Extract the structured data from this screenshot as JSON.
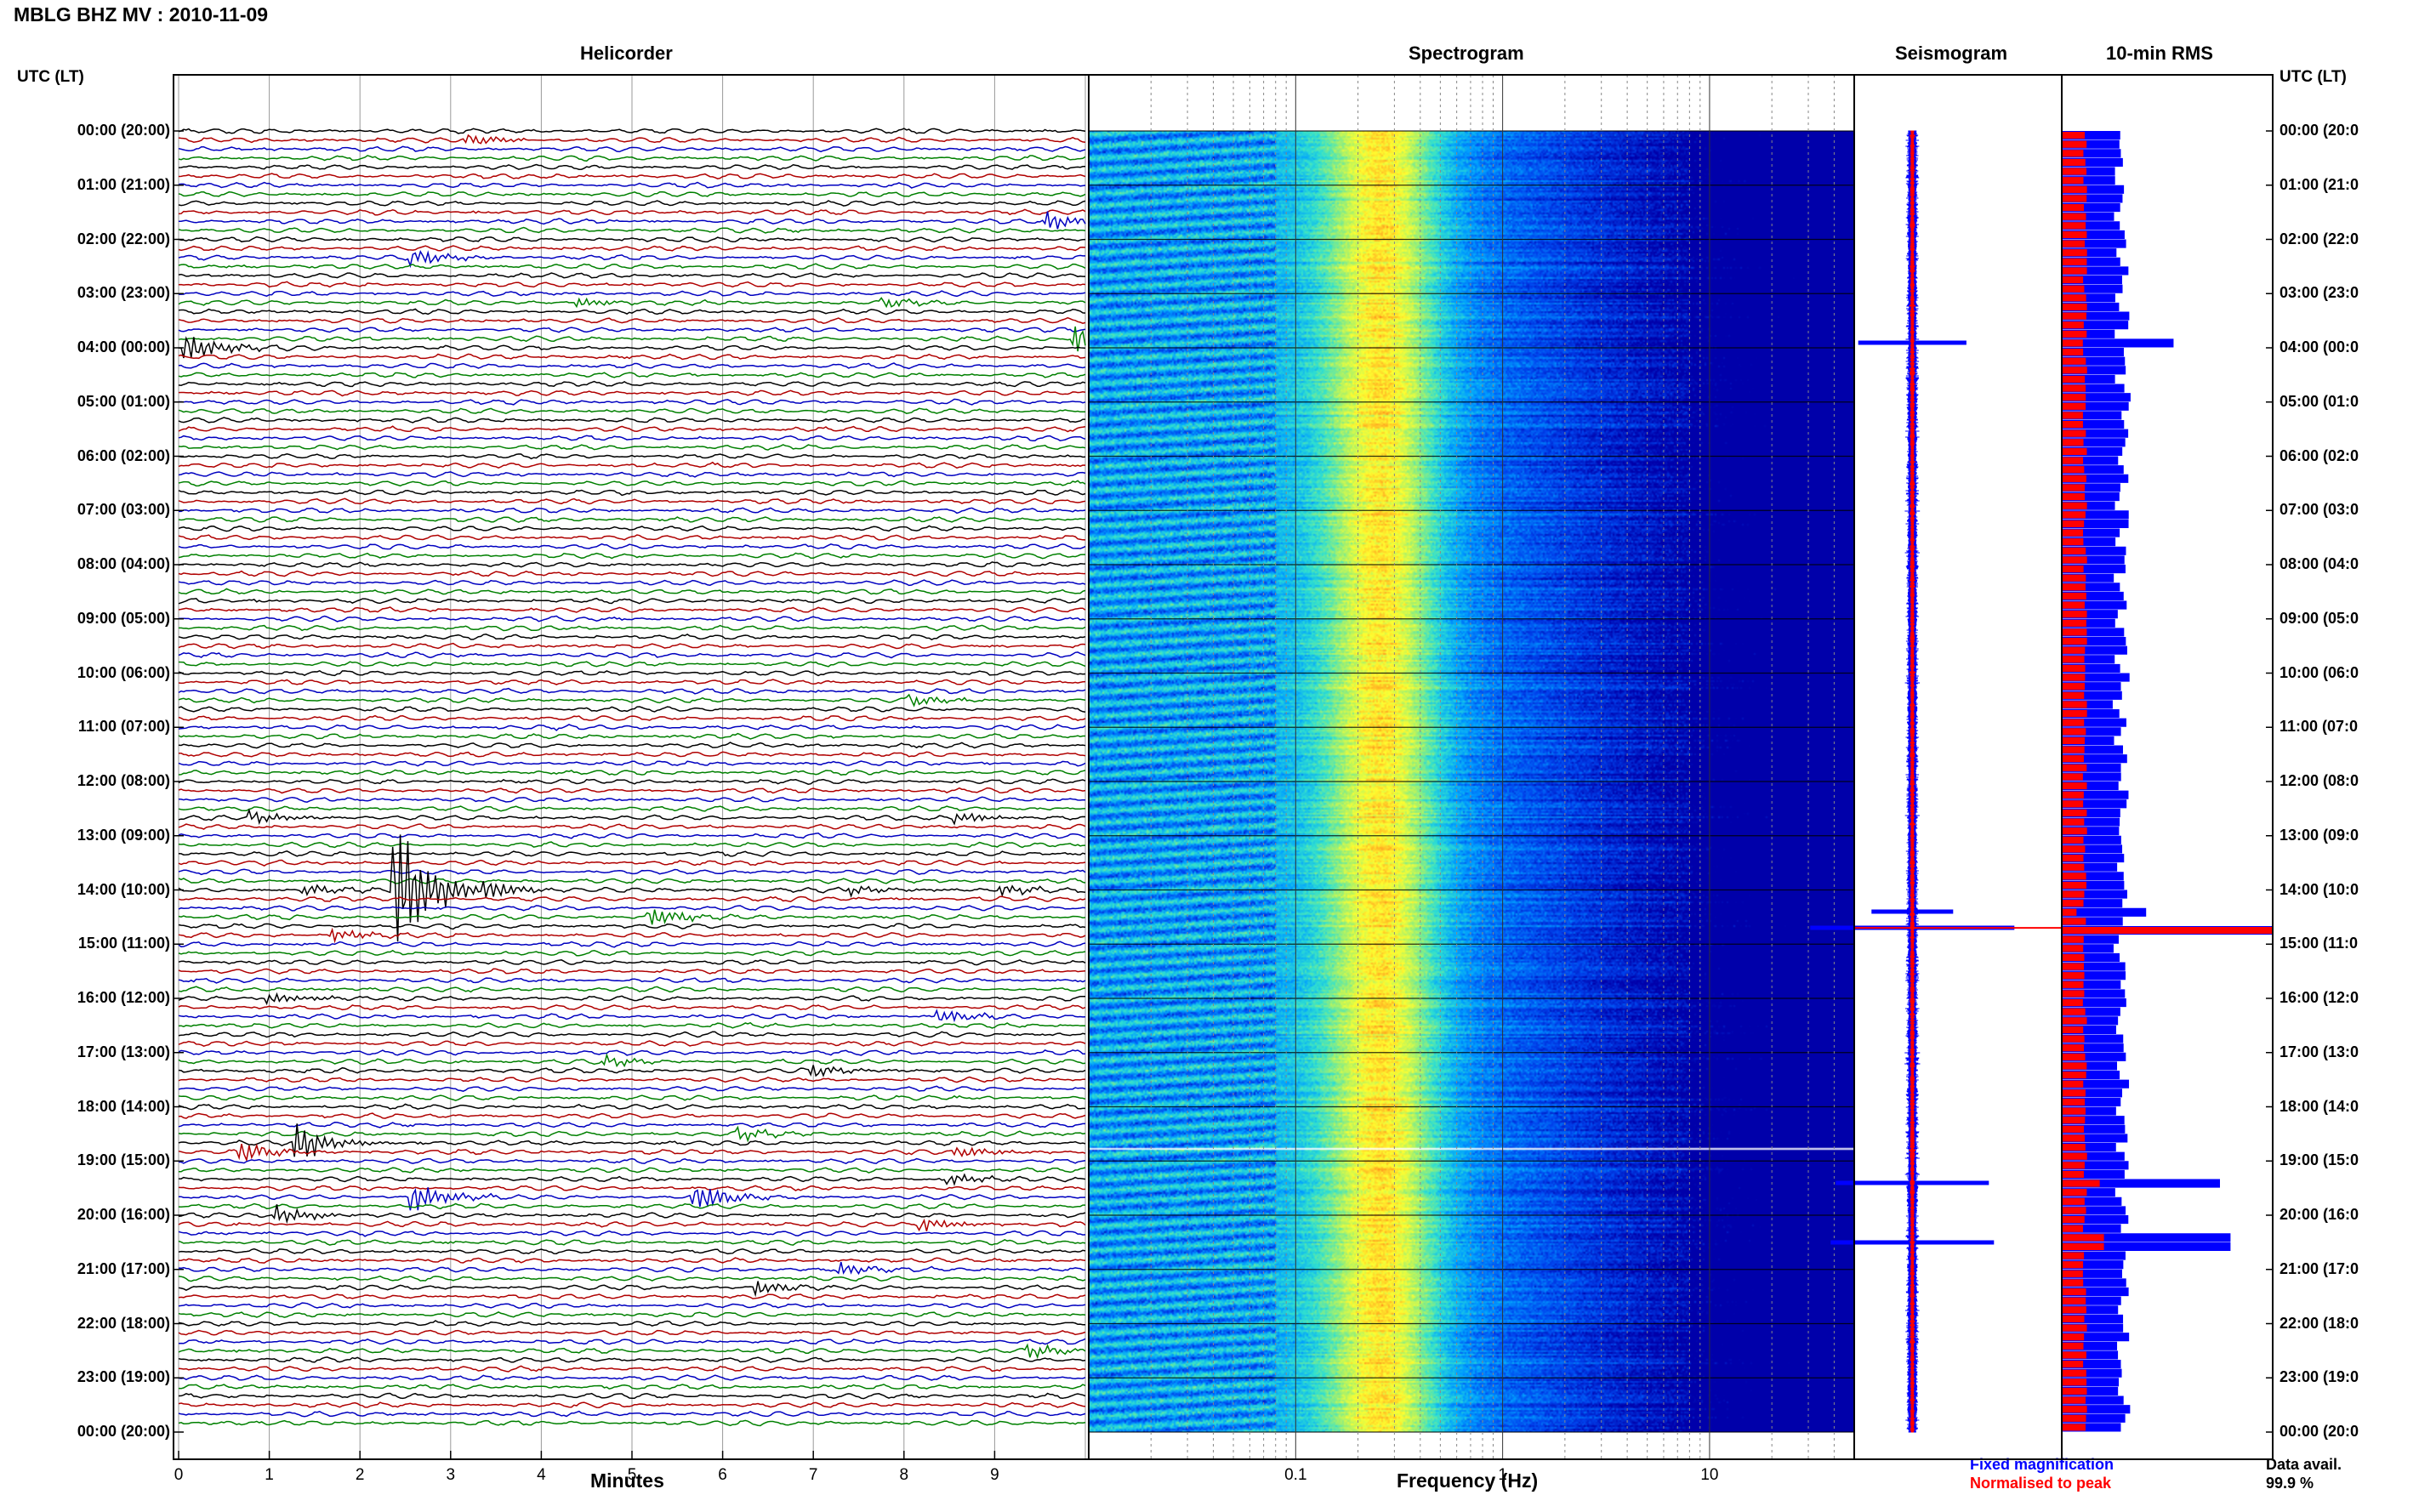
{
  "header": {
    "station_title": "MBLG BHZ MV : 2010-11-09",
    "left_axis_label": "UTC (LT)",
    "right_axis_label": "UTC (LT)"
  },
  "panels": {
    "helicorder": "Helicorder",
    "spectrogram": "Spectrogram",
    "seismogram": "Seismogram",
    "rms": "10-min RMS"
  },
  "time_labels_left": [
    "00:00 (20:00)",
    "01:00 (21:00)",
    "02:00 (22:00)",
    "03:00 (23:00)",
    "04:00 (00:00)",
    "05:00 (01:00)",
    "06:00 (02:00)",
    "07:00 (03:00)",
    "08:00 (04:00)",
    "09:00 (05:00)",
    "10:00 (06:00)",
    "11:00 (07:00)",
    "12:00 (08:00)",
    "13:00 (09:00)",
    "14:00 (10:00)",
    "15:00 (11:00)",
    "16:00 (12:00)",
    "17:00 (13:00)",
    "18:00 (14:00)",
    "19:00 (15:00)",
    "20:00 (16:00)",
    "21:00 (17:00)",
    "22:00 (18:00)",
    "23:00 (19:00)",
    "00:00 (20:00)"
  ],
  "time_labels_right": [
    "00:00 (20:0",
    "01:00 (21:0",
    "02:00 (22:0",
    "03:00 (23:0",
    "04:00 (00:0",
    "05:00 (01:0",
    "06:00 (02:0",
    "07:00 (03:0",
    "08:00 (04:0",
    "09:00 (05:0",
    "10:00 (06:0",
    "11:00 (07:0",
    "12:00 (08:0",
    "13:00 (09:0",
    "14:00 (10:0",
    "15:00 (11:0",
    "16:00 (12:0",
    "17:00 (13:0",
    "18:00 (14:0",
    "19:00 (15:0",
    "20:00 (16:0",
    "21:00 (17:0",
    "22:00 (18:0",
    "23:00 (19:0",
    "00:00 (20:0"
  ],
  "x_axes": {
    "helicorder_ticks": [
      "0",
      "1",
      "2",
      "3",
      "4",
      "5",
      "6",
      "7",
      "8",
      "9"
    ],
    "helicorder_label": "Minutes",
    "spectrogram_ticks": [
      "0.1",
      "1",
      "10"
    ],
    "spectrogram_label": "Frequency (Hz)"
  },
  "legend": {
    "fixed": "Fixed magnification",
    "normalised": "Normalised to peak",
    "fixed_color": "#0000ff",
    "normalised_color": "#ff0000"
  },
  "data_avail": {
    "label": "Data avail.",
    "value": "99.9 %"
  },
  "chart_data": {
    "type": "heatmap",
    "description_note": "",
    "helicorder": {
      "minutes_per_line": 10,
      "lines": 144,
      "trace_colors": [
        "#000000",
        "#b00000",
        "#0000c0",
        "#008000"
      ],
      "events": [
        {
          "line": 1,
          "minute": 3.2,
          "amp": 1.2
        },
        {
          "line": 10,
          "minute": 9.6,
          "amp": 1.8
        },
        {
          "line": 14,
          "minute": 2.6,
          "amp": 1.6
        },
        {
          "line": 19,
          "minute": 4.4,
          "amp": 1.0
        },
        {
          "line": 19,
          "minute": 7.8,
          "amp": 1.0
        },
        {
          "line": 23,
          "minute": 9.9,
          "amp": 3.0
        },
        {
          "line": 24,
          "minute": 0.1,
          "amp": 3.0
        },
        {
          "line": 63,
          "minute": 8.1,
          "amp": 1.2
        },
        {
          "line": 76,
          "minute": 0.8,
          "amp": 1.5
        },
        {
          "line": 76,
          "minute": 8.6,
          "amp": 1.2
        },
        {
          "line": 84,
          "minute": 2.4,
          "amp": 14
        },
        {
          "line": 84,
          "minute": 1.4,
          "amp": 1.3
        },
        {
          "line": 84,
          "minute": 3.4,
          "amp": 1.3
        },
        {
          "line": 84,
          "minute": 7.4,
          "amp": 1.2
        },
        {
          "line": 84,
          "minute": 9.1,
          "amp": 1.2
        },
        {
          "line": 87,
          "minute": 5.2,
          "amp": 2.0
        },
        {
          "line": 89,
          "minute": 1.7,
          "amp": 1.4
        },
        {
          "line": 96,
          "minute": 1.0,
          "amp": 1.3
        },
        {
          "line": 98,
          "minute": 8.4,
          "amp": 1.4
        },
        {
          "line": 103,
          "minute": 4.7,
          "amp": 1.3
        },
        {
          "line": 104,
          "minute": 7.0,
          "amp": 1.2
        },
        {
          "line": 111,
          "minute": 6.2,
          "amp": 1.3
        },
        {
          "line": 112,
          "minute": 1.3,
          "amp": 4.0
        },
        {
          "line": 113,
          "minute": 0.7,
          "amp": 2.2
        },
        {
          "line": 113,
          "minute": 8.6,
          "amp": 1.3
        },
        {
          "line": 116,
          "minute": 8.5,
          "amp": 1.2
        },
        {
          "line": 118,
          "minute": 2.6,
          "amp": 3.0
        },
        {
          "line": 118,
          "minute": 5.7,
          "amp": 3.0
        },
        {
          "line": 120,
          "minute": 1.1,
          "amp": 2.0
        },
        {
          "line": 121,
          "minute": 8.2,
          "amp": 1.6
        },
        {
          "line": 126,
          "minute": 7.3,
          "amp": 1.4
        },
        {
          "line": 128,
          "minute": 6.4,
          "amp": 1.5
        },
        {
          "line": 135,
          "minute": 9.4,
          "amp": 1.4
        }
      ]
    },
    "spectrogram": {
      "freq_range_hz": [
        0.01,
        50
      ],
      "x_scale": "log",
      "peak_band_hz": [
        0.15,
        0.45
      ],
      "colormap": [
        "#0000aa",
        "#0044ee",
        "#00a0ff",
        "#30e0d0",
        "#a0f070",
        "#ffff30",
        "#ffa020",
        "#ff2000"
      ],
      "gap_at_hour": 18.75
    },
    "rms_10min": {
      "bins_per_hour": 6,
      "spikes": [
        {
          "hour": 3.9,
          "fixed": 0.53,
          "normalised": 0.1
        },
        {
          "hour": 14.4,
          "fixed": 0.4,
          "normalised": 0.07
        },
        {
          "hour": 14.7,
          "fixed": 1.0,
          "normalised": 1.0
        },
        {
          "hour": 19.4,
          "fixed": 0.75,
          "normalised": 0.18
        },
        {
          "hour": 20.5,
          "fixed": 0.8,
          "normalised": 0.2
        }
      ]
    }
  }
}
